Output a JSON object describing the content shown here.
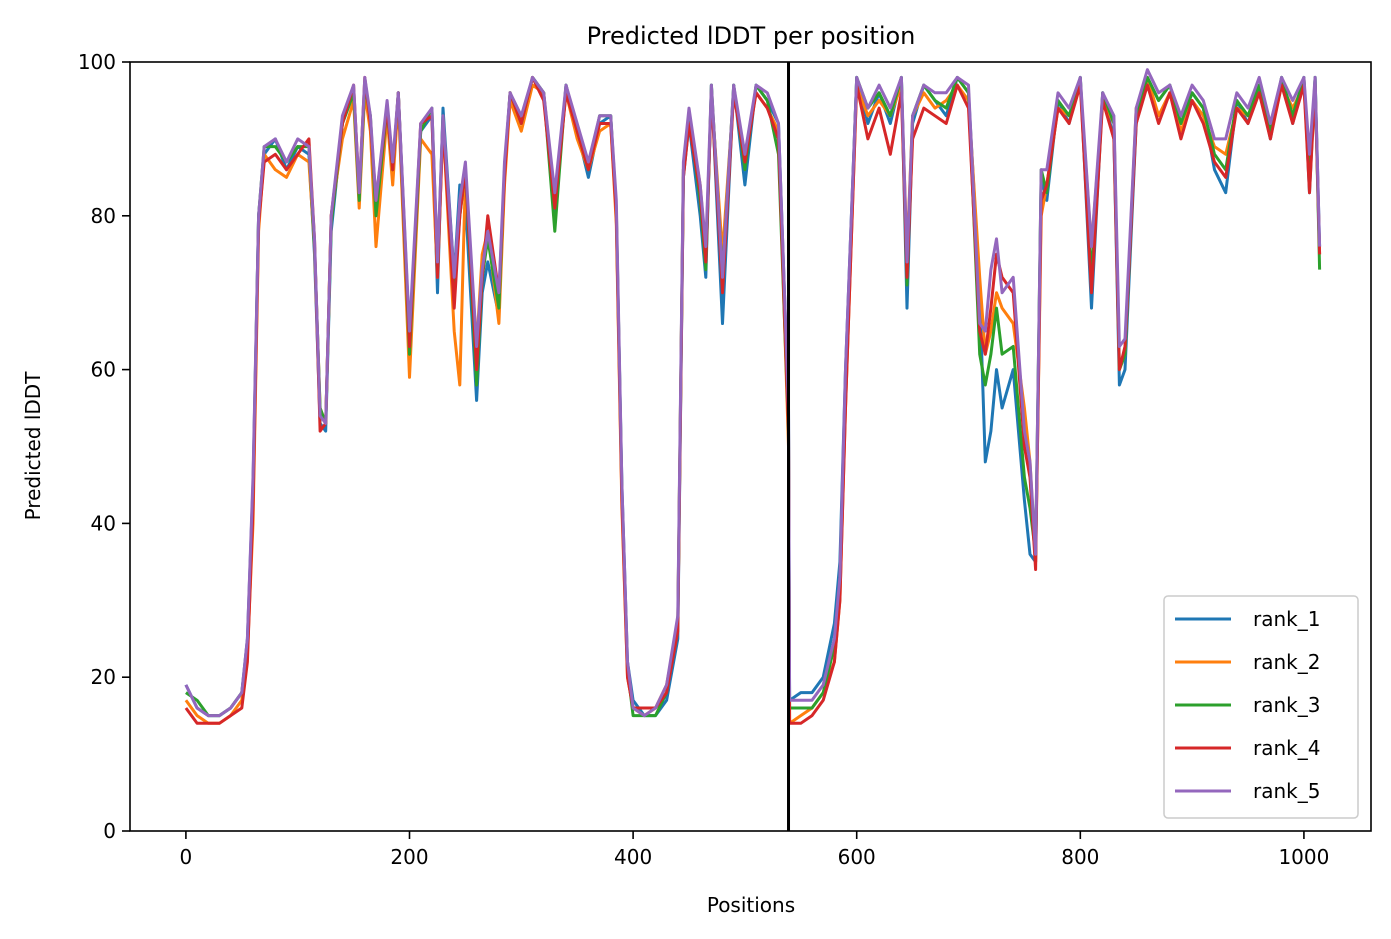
{
  "chart_data": {
    "type": "line",
    "title": "Predicted lDDT per position",
    "xlabel": "Positions",
    "ylabel": "Predicted lDDT",
    "xlim": [
      -50,
      1060
    ],
    "ylim": [
      0,
      100
    ],
    "xticks": [
      0,
      200,
      400,
      600,
      800,
      1000
    ],
    "yticks": [
      0,
      20,
      40,
      60,
      80,
      100
    ],
    "chain_break": 539,
    "legend_position": "lower right",
    "grid": false,
    "series_colors": {
      "rank_1": "#1f77b4",
      "rank_2": "#ff7f0e",
      "rank_3": "#2ca02c",
      "rank_4": "#d62728",
      "rank_5": "#9467bd"
    },
    "x": [
      0,
      10,
      20,
      30,
      40,
      50,
      55,
      60,
      65,
      70,
      80,
      90,
      100,
      110,
      115,
      120,
      125,
      130,
      140,
      150,
      155,
      160,
      165,
      170,
      180,
      185,
      190,
      200,
      210,
      220,
      225,
      230,
      240,
      245,
      250,
      260,
      265,
      270,
      280,
      285,
      290,
      300,
      310,
      320,
      330,
      340,
      350,
      360,
      370,
      380,
      385,
      390,
      395,
      400,
      410,
      420,
      430,
      440,
      445,
      450,
      460,
      465,
      470,
      480,
      490,
      500,
      510,
      520,
      530,
      539,
      540,
      550,
      560,
      570,
      580,
      585,
      590,
      600,
      610,
      620,
      630,
      640,
      645,
      650,
      660,
      670,
      680,
      690,
      700,
      710,
      715,
      720,
      725,
      730,
      740,
      750,
      755,
      760,
      765,
      770,
      780,
      790,
      800,
      810,
      820,
      830,
      835,
      840,
      850,
      860,
      870,
      880,
      890,
      900,
      910,
      920,
      930,
      940,
      950,
      960,
      970,
      980,
      990,
      1000,
      1005,
      1010,
      1014
    ],
    "series": [
      {
        "name": "rank_1",
        "values": [
          19,
          16,
          15,
          15,
          16,
          18,
          25,
          45,
          80,
          88,
          90,
          86,
          89,
          88,
          75,
          53,
          52,
          78,
          92,
          96,
          82,
          97,
          92,
          80,
          94,
          85,
          96,
          64,
          91,
          93,
          70,
          94,
          72,
          84,
          82,
          56,
          70,
          74,
          67,
          86,
          96,
          92,
          98,
          96,
          80,
          97,
          91,
          85,
          92,
          93,
          80,
          45,
          22,
          17,
          15,
          15,
          17,
          25,
          85,
          92,
          80,
          72,
          97,
          66,
          97,
          84,
          97,
          95,
          92,
          55,
          17,
          18,
          18,
          20,
          27,
          35,
          60,
          98,
          92,
          96,
          92,
          98,
          68,
          92,
          97,
          95,
          93,
          98,
          96,
          70,
          48,
          52,
          60,
          55,
          60,
          43,
          36,
          35,
          85,
          82,
          95,
          92,
          98,
          68,
          96,
          90,
          58,
          60,
          92,
          98,
          95,
          97,
          92,
          96,
          94,
          86,
          83,
          95,
          92,
          97,
          90,
          98,
          92,
          98,
          83,
          98,
          76
        ]
      },
      {
        "name": "rank_2",
        "values": [
          17,
          15,
          14,
          14,
          15,
          17,
          23,
          40,
          78,
          88,
          86,
          85,
          88,
          87,
          76,
          55,
          53,
          80,
          90,
          95,
          81,
          96,
          91,
          76,
          93,
          84,
          95,
          59,
          90,
          88,
          72,
          92,
          65,
          58,
          85,
          63,
          75,
          78,
          66,
          84,
          95,
          91,
          97,
          96,
          82,
          96,
          90,
          86,
          91,
          92,
          79,
          42,
          20,
          16,
          15,
          16,
          19,
          27,
          86,
          93,
          84,
          75,
          96,
          75,
          96,
          88,
          96,
          94,
          91,
          50,
          14,
          15,
          16,
          18,
          22,
          30,
          55,
          97,
          93,
          95,
          93,
          97,
          75,
          93,
          96,
          94,
          95,
          97,
          95,
          72,
          62,
          65,
          70,
          68,
          66,
          55,
          48,
          35,
          80,
          84,
          94,
          93,
          97,
          76,
          95,
          92,
          60,
          62,
          94,
          98,
          93,
          96,
          91,
          95,
          93,
          89,
          88,
          94,
          93,
          96,
          91,
          97,
          94,
          97,
          86,
          97,
          75
        ]
      },
      {
        "name": "rank_3",
        "values": [
          18,
          17,
          15,
          15,
          16,
          18,
          24,
          44,
          80,
          89,
          89,
          87,
          89,
          89,
          76,
          55,
          53,
          79,
          92,
          96,
          82,
          97,
          93,
          80,
          94,
          86,
          96,
          62,
          91,
          94,
          73,
          93,
          70,
          80,
          86,
          58,
          72,
          77,
          68,
          86,
          96,
          92,
          98,
          96,
          78,
          97,
          91,
          86,
          93,
          93,
          81,
          44,
          21,
          15,
          15,
          15,
          18,
          27,
          86,
          93,
          82,
          73,
          97,
          72,
          97,
          86,
          97,
          95,
          88,
          52,
          16,
          16,
          16,
          18,
          24,
          32,
          58,
          98,
          94,
          96,
          93,
          98,
          71,
          93,
          97,
          95,
          94,
          98,
          96,
          62,
          58,
          62,
          68,
          62,
          63,
          46,
          42,
          36,
          86,
          83,
          95,
          93,
          98,
          72,
          96,
          92,
          60,
          62,
          93,
          98,
          95,
          97,
          92,
          96,
          94,
          88,
          86,
          95,
          93,
          97,
          91,
          98,
          93,
          98,
          84,
          98,
          73
        ]
      },
      {
        "name": "rank_4",
        "values": [
          16,
          14,
          14,
          14,
          15,
          16,
          22,
          42,
          79,
          87,
          88,
          86,
          88,
          90,
          77,
          52,
          53,
          80,
          92,
          97,
          83,
          98,
          92,
          82,
          94,
          86,
          96,
          63,
          92,
          93,
          72,
          92,
          68,
          80,
          86,
          60,
          72,
          80,
          70,
          85,
          96,
          92,
          98,
          95,
          81,
          96,
          91,
          86,
          92,
          92,
          80,
          43,
          20,
          16,
          16,
          16,
          18,
          26,
          85,
          92,
          83,
          74,
          96,
          70,
          96,
          87,
          96,
          94,
          90,
          52,
          14,
          14,
          15,
          17,
          22,
          30,
          55,
          97,
          90,
          94,
          88,
          96,
          72,
          90,
          94,
          93,
          92,
          97,
          94,
          65,
          62,
          68,
          75,
          72,
          70,
          50,
          46,
          34,
          82,
          84,
          94,
          92,
          97,
          70,
          95,
          90,
          60,
          63,
          92,
          97,
          92,
          96,
          90,
          95,
          92,
          87,
          85,
          94,
          92,
          96,
          90,
          97,
          92,
          97,
          83,
          97,
          75
        ]
      },
      {
        "name": "rank_5",
        "values": [
          19,
          16,
          15,
          15,
          16,
          18,
          25,
          46,
          80,
          89,
          90,
          87,
          90,
          89,
          77,
          54,
          53,
          80,
          93,
          97,
          83,
          98,
          93,
          82,
          95,
          87,
          96,
          65,
          92,
          94,
          74,
          93,
          72,
          82,
          87,
          63,
          73,
          78,
          70,
          87,
          96,
          93,
          98,
          96,
          83,
          97,
          92,
          87,
          93,
          93,
          82,
          45,
          22,
          16,
          15,
          16,
          19,
          28,
          87,
          94,
          84,
          76,
          97,
          72,
          97,
          88,
          97,
          96,
          92,
          55,
          17,
          17,
          17,
          19,
          25,
          33,
          60,
          98,
          94,
          97,
          94,
          98,
          74,
          93,
          97,
          96,
          96,
          98,
          97,
          66,
          65,
          73,
          77,
          70,
          72,
          52,
          48,
          36,
          86,
          86,
          96,
          94,
          98,
          76,
          96,
          93,
          63,
          64,
          94,
          99,
          96,
          97,
          93,
          97,
          95,
          90,
          90,
          96,
          94,
          98,
          92,
          98,
          95,
          98,
          88,
          98,
          76
        ]
      }
    ]
  }
}
